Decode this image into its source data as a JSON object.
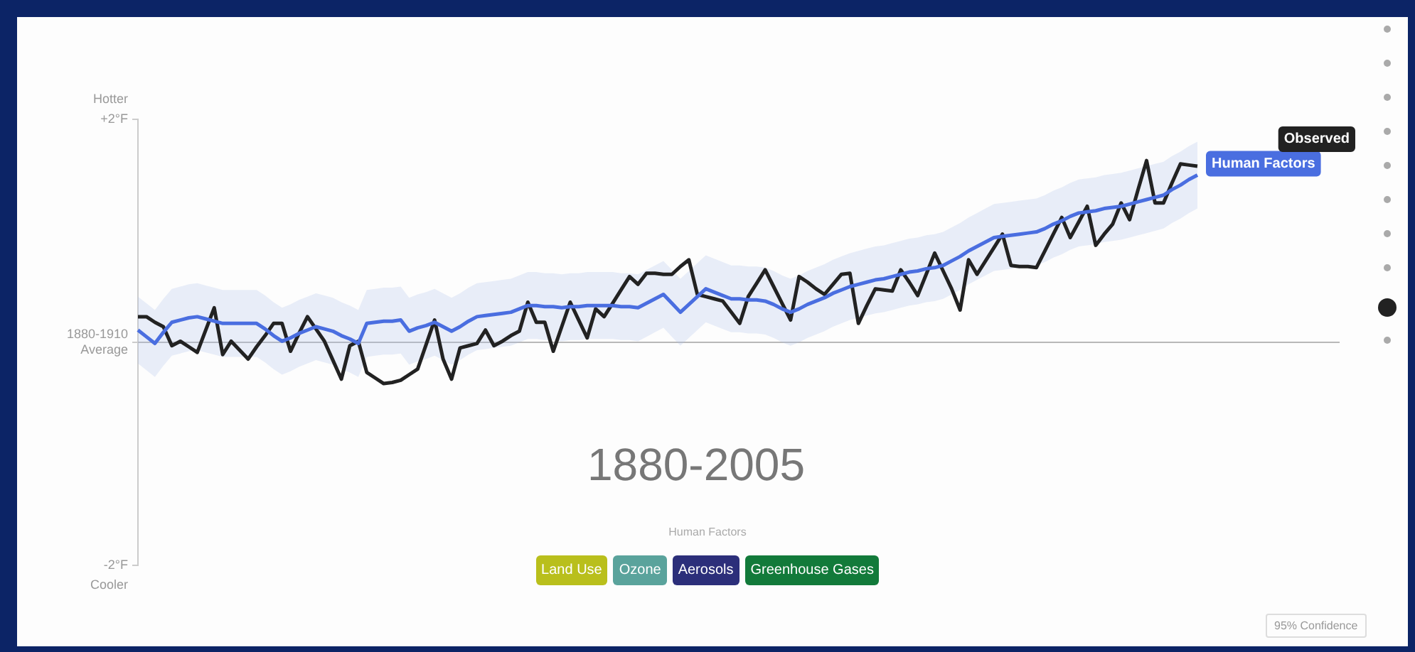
{
  "chart_data": {
    "type": "line",
    "title": "1880-2005",
    "ylim": [
      -2,
      2
    ],
    "categories": [
      null,
      null,
      null,
      null,
      null,
      null,
      null,
      null,
      null,
      null,
      null,
      null,
      null,
      null,
      null,
      null,
      null,
      null,
      null,
      null,
      null,
      null,
      null,
      null,
      null,
      null,
      null,
      null,
      null,
      null,
      null,
      null,
      null,
      null,
      null,
      null,
      null,
      null,
      null,
      null,
      null,
      null,
      null,
      null,
      null,
      null,
      null,
      null,
      null,
      null,
      null,
      null,
      null,
      null,
      null,
      null,
      null,
      null,
      null,
      null,
      null,
      null,
      null,
      null,
      null,
      null,
      null,
      null,
      null,
      null,
      null,
      null,
      null,
      null,
      null,
      null,
      null,
      null,
      null,
      null,
      null,
      null,
      null,
      null,
      null,
      null,
      null,
      null,
      null,
      null,
      null,
      null,
      null,
      null,
      null,
      null,
      null,
      null,
      null,
      null,
      null,
      null,
      null,
      null,
      null,
      null,
      null,
      null,
      null,
      null,
      null,
      null,
      null,
      null,
      null,
      null,
      null,
      null,
      null,
      null,
      null,
      null,
      null,
      null,
      null,
      null
    ],
    "yticks": [
      {
        "value": 2,
        "label": "+2°F"
      },
      {
        "value": 0,
        "label": "1880-1910\nAverage"
      },
      {
        "value": -2,
        "label": "-2°F"
      }
    ],
    "tick_labels": "y",
    "grid": false,
    "legend": false,
    "marker": "none",
    "line_style": "solid",
    "ref_lines": [
      {
        "axis": "y",
        "value": 0,
        "color": "#b8b8b8"
      }
    ],
    "annotations": [
      "Hotter",
      "Cooler",
      "Human Factors",
      "Land Use",
      "Ozone",
      "Aerosols",
      "Greenhouse Gases",
      "95% Confidence"
    ],
    "series": [
      {
        "name": "Human Factors",
        "color": "#4a6ee0",
        "values": [
          0.11,
          0.05,
          -0.01,
          0.09,
          0.18,
          0.2,
          0.22,
          0.23,
          0.21,
          0.19,
          0.17,
          0.17,
          0.17,
          0.17,
          0.17,
          0.12,
          0.06,
          0.01,
          0.04,
          0.08,
          0.11,
          0.14,
          0.12,
          0.1,
          0.06,
          0.03,
          -0.01,
          0.17,
          0.18,
          0.19,
          0.19,
          0.2,
          0.1,
          0.13,
          0.15,
          0.18,
          0.14,
          0.1,
          0.14,
          0.19,
          0.23,
          0.24,
          0.25,
          0.26,
          0.27,
          0.3,
          0.33,
          0.33,
          0.32,
          0.32,
          0.31,
          0.32,
          0.32,
          0.33,
          0.33,
          0.33,
          0.33,
          0.32,
          0.32,
          0.31,
          0.35,
          0.39,
          0.43,
          0.35,
          0.27,
          0.34,
          0.41,
          0.48,
          0.45,
          0.42,
          0.39,
          0.39,
          0.38,
          0.38,
          0.37,
          0.34,
          0.3,
          0.27,
          0.3,
          0.34,
          0.37,
          0.4,
          0.44,
          0.47,
          0.5,
          0.52,
          0.54,
          0.56,
          0.57,
          0.59,
          0.61,
          0.63,
          0.64,
          0.66,
          0.67,
          0.69,
          0.73,
          0.77,
          0.82,
          0.86,
          0.9,
          0.94,
          0.95,
          0.96,
          0.97,
          0.98,
          0.99,
          1.02,
          1.06,
          1.09,
          1.13,
          1.16,
          1.17,
          1.18,
          1.2,
          1.21,
          1.22,
          1.24,
          1.26,
          1.28,
          1.3,
          1.32,
          1.37,
          1.41,
          1.46,
          1.5
        ],
        "lower": [
          -0.19,
          -0.25,
          -0.31,
          -0.21,
          -0.12,
          -0.1,
          -0.08,
          -0.07,
          -0.09,
          -0.11,
          -0.13,
          -0.13,
          -0.13,
          -0.13,
          -0.13,
          -0.18,
          -0.24,
          -0.29,
          -0.26,
          -0.22,
          -0.19,
          -0.16,
          -0.18,
          -0.2,
          -0.24,
          -0.27,
          -0.31,
          -0.13,
          -0.12,
          -0.11,
          -0.11,
          -0.1,
          -0.2,
          -0.17,
          -0.15,
          -0.12,
          -0.16,
          -0.2,
          -0.16,
          -0.11,
          -0.07,
          -0.06,
          -0.05,
          -0.04,
          -0.03,
          0,
          0.03,
          0.03,
          0.02,
          0.02,
          0.01,
          0.02,
          0.02,
          0.03,
          0.03,
          0.03,
          0.03,
          0.02,
          0.02,
          0.01,
          0.05,
          0.09,
          0.13,
          0.05,
          -0.03,
          0.04,
          0.11,
          0.18,
          0.15,
          0.12,
          0.09,
          0.09,
          0.08,
          0.08,
          0.07,
          0.04,
          0,
          -0.03,
          0,
          0.04,
          0.07,
          0.1,
          0.14,
          0.17,
          0.2,
          0.22,
          0.24,
          0.26,
          0.27,
          0.29,
          0.31,
          0.33,
          0.34,
          0.36,
          0.37,
          0.39,
          0.43,
          0.47,
          0.52,
          0.56,
          0.6,
          0.64,
          0.65,
          0.66,
          0.67,
          0.68,
          0.69,
          0.72,
          0.76,
          0.79,
          0.83,
          0.86,
          0.87,
          0.88,
          0.9,
          0.91,
          0.92,
          0.94,
          0.96,
          0.98,
          1,
          1.02,
          1.07,
          1.11,
          1.16,
          1.2
        ],
        "upper": [
          0.41,
          0.35,
          0.29,
          0.39,
          0.48,
          0.5,
          0.52,
          0.53,
          0.51,
          0.49,
          0.47,
          0.47,
          0.47,
          0.47,
          0.47,
          0.42,
          0.36,
          0.31,
          0.34,
          0.38,
          0.41,
          0.44,
          0.42,
          0.4,
          0.36,
          0.33,
          0.29,
          0.47,
          0.48,
          0.49,
          0.49,
          0.5,
          0.4,
          0.43,
          0.45,
          0.48,
          0.44,
          0.4,
          0.44,
          0.49,
          0.53,
          0.54,
          0.55,
          0.56,
          0.57,
          0.6,
          0.63,
          0.63,
          0.62,
          0.62,
          0.61,
          0.62,
          0.62,
          0.63,
          0.63,
          0.63,
          0.63,
          0.62,
          0.62,
          0.61,
          0.65,
          0.69,
          0.73,
          0.65,
          0.57,
          0.64,
          0.71,
          0.78,
          0.75,
          0.72,
          0.69,
          0.69,
          0.68,
          0.68,
          0.67,
          0.64,
          0.6,
          0.57,
          0.6,
          0.64,
          0.67,
          0.7,
          0.74,
          0.77,
          0.8,
          0.82,
          0.84,
          0.86,
          0.87,
          0.89,
          0.91,
          0.93,
          0.94,
          0.96,
          0.97,
          0.99,
          1.03,
          1.07,
          1.12,
          1.16,
          1.2,
          1.24,
          1.25,
          1.26,
          1.27,
          1.28,
          1.29,
          1.32,
          1.36,
          1.39,
          1.43,
          1.46,
          1.47,
          1.48,
          1.5,
          1.51,
          1.52,
          1.54,
          1.56,
          1.58,
          1.6,
          1.62,
          1.67,
          1.71,
          1.76,
          1.8
        ]
      },
      {
        "name": "Observed",
        "color": "#222222",
        "values": [
          0.23,
          0.23,
          0.18,
          0.14,
          -0.03,
          0.01,
          -0.04,
          -0.09,
          0.11,
          0.31,
          -0.11,
          0.01,
          -0.07,
          -0.15,
          -0.04,
          0.06,
          0.17,
          0.17,
          -0.08,
          0.08,
          0.23,
          0.12,
          0.01,
          -0.16,
          -0.33,
          -0.03,
          0.01,
          -0.27,
          -0.32,
          -0.37,
          -0.36,
          -0.34,
          -0.29,
          -0.24,
          -0.02,
          0.2,
          -0.15,
          -0.33,
          -0.05,
          -0.03,
          -0.01,
          0.11,
          -0.03,
          0.01,
          0.06,
          0.1,
          0.36,
          0.18,
          0.18,
          -0.08,
          0.14,
          0.36,
          0.2,
          0.04,
          0.3,
          0.23,
          0.35,
          0.47,
          0.59,
          0.52,
          0.62,
          0.62,
          0.61,
          0.61,
          0.68,
          0.74,
          0.43,
          0.41,
          0.39,
          0.37,
          0.27,
          0.17,
          0.41,
          0.53,
          0.65,
          0.5,
          0.35,
          0.2,
          0.59,
          0.54,
          0.48,
          0.43,
          0.52,
          0.61,
          0.62,
          0.17,
          0.33,
          0.48,
          0.47,
          0.46,
          0.65,
          0.54,
          0.42,
          0.61,
          0.8,
          0.64,
          0.48,
          0.29,
          0.74,
          0.61,
          0.73,
          0.85,
          0.97,
          0.69,
          0.68,
          0.68,
          0.67,
          0.82,
          0.97,
          1.12,
          0.94,
          1.08,
          1.22,
          0.87,
          0.97,
          1.06,
          1.25,
          1.1,
          1.37,
          1.63,
          1.25,
          1.25,
          1.43,
          1.6,
          1.59,
          1.58
        ]
      }
    ]
  }
}
